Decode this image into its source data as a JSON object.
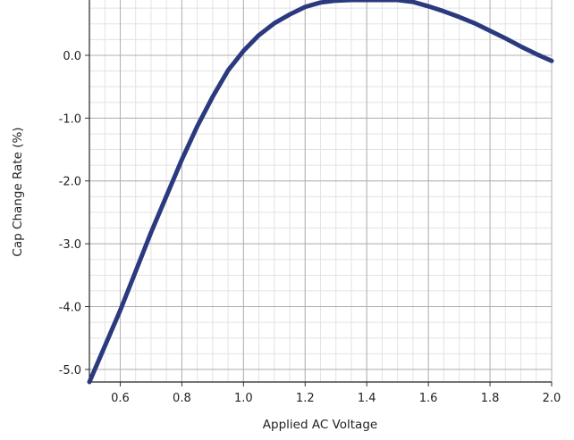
{
  "chart_data": {
    "type": "line",
    "title": "",
    "xlabel": "Applied AC Voltage",
    "ylabel": "Cap Change Rate (%)",
    "xlim": [
      0.5,
      2.0
    ],
    "ylim": [
      -5.2,
      0.88
    ],
    "x_ticks": [
      0.6,
      0.8,
      1.0,
      1.2,
      1.4,
      1.6,
      1.8,
      2.0
    ],
    "x_tick_labels": [
      "0.6",
      "0.8",
      "1.0",
      "1.2",
      "1.4",
      "1.6",
      "1.8",
      "2.0"
    ],
    "y_ticks": [
      0.0,
      -1.0,
      -2.0,
      -3.0,
      -4.0,
      -5.0
    ],
    "y_tick_labels": [
      "0.0",
      "-1.0",
      "-2.0",
      "-3.0",
      "-4.0",
      "-5.0"
    ],
    "grid": true,
    "minor_grid": true,
    "line_color": "#2b3a7e",
    "series": [
      {
        "x": [
          0.5,
          0.55,
          0.6,
          0.65,
          0.7,
          0.75,
          0.8,
          0.85,
          0.9,
          0.95,
          1.0,
          1.05,
          1.1,
          1.15,
          1.2,
          1.25,
          1.3,
          1.35,
          1.4,
          1.45,
          1.5,
          1.55,
          1.6,
          1.65,
          1.7,
          1.75,
          1.8,
          1.85,
          1.9,
          1.95,
          2.0
        ],
        "y": [
          -5.2,
          -4.63,
          -4.06,
          -3.44,
          -2.82,
          -2.24,
          -1.66,
          -1.13,
          -0.66,
          -0.24,
          0.07,
          0.32,
          0.51,
          0.65,
          0.77,
          0.84,
          0.87,
          0.88,
          0.88,
          0.88,
          0.88,
          0.85,
          0.78,
          0.7,
          0.61,
          0.51,
          0.39,
          0.27,
          0.14,
          0.02,
          -0.09
        ]
      }
    ]
  }
}
